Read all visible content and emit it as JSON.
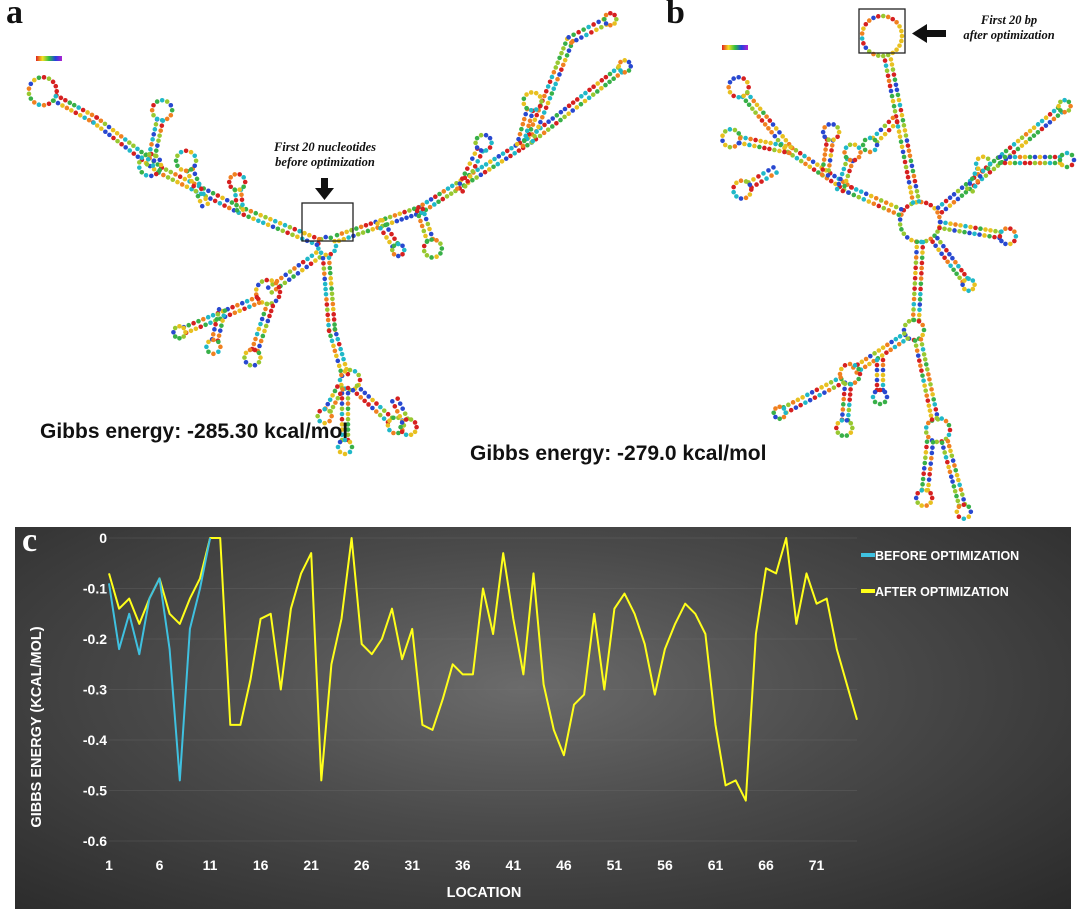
{
  "panels": {
    "a": {
      "letter": "a",
      "callout_line1": "First 20 nucleotides",
      "callout_line2": "before optimization",
      "energy_text": "Gibbs energy:  -285.30 kcal/mol"
    },
    "b": {
      "letter": "b",
      "callout_line1": "First 20 bp",
      "callout_line2": "after optimization",
      "energy_text": "Gibbs energy:  -279.0 kcal/mol"
    },
    "c": {
      "letter": "c"
    }
  },
  "chart_data": {
    "type": "line",
    "title": "",
    "xlabel": "LOCATION",
    "ylabel": "GIBBS ENERGY (KCAL/MOL)",
    "ylim": [
      -0.6,
      0
    ],
    "yticks": [
      "0",
      "-0.1",
      "-0.2",
      "-0.3",
      "-0.4",
      "-0.5",
      "-0.6"
    ],
    "ytick_values": [
      0,
      -0.1,
      -0.2,
      -0.3,
      -0.4,
      -0.5,
      -0.6
    ],
    "xticks": [
      "1",
      "6",
      "11",
      "16",
      "21",
      "26",
      "31",
      "36",
      "41",
      "46",
      "51",
      "56",
      "61",
      "66",
      "71"
    ],
    "xtick_values": [
      1,
      6,
      11,
      16,
      21,
      26,
      31,
      36,
      41,
      46,
      51,
      56,
      61,
      66,
      71
    ],
    "xlim": [
      1,
      75
    ],
    "grid": true,
    "legend_position": "top-right",
    "series": [
      {
        "name": "BEFORE OPTIMIZATION",
        "color": "#3fc1e0",
        "x": [
          1,
          2,
          3,
          4,
          5,
          6,
          7,
          8,
          9,
          10,
          11
        ],
        "values": [
          -0.09,
          -0.22,
          -0.15,
          -0.23,
          -0.12,
          -0.08,
          -0.22,
          -0.48,
          -0.18,
          -0.1,
          0
        ]
      },
      {
        "name": "AFTER OPTIMIZATION",
        "color": "#ffff1a",
        "x": [
          1,
          2,
          3,
          4,
          5,
          6,
          7,
          8,
          9,
          10,
          11,
          12,
          13,
          14,
          15,
          16,
          17,
          18,
          19,
          20,
          21,
          22,
          23,
          24,
          25,
          26,
          27,
          28,
          29,
          30,
          31,
          32,
          33,
          34,
          35,
          36,
          37,
          38,
          39,
          40,
          41,
          42,
          43,
          44,
          45,
          46,
          47,
          48,
          49,
          50,
          51,
          52,
          53,
          54,
          55,
          56,
          57,
          58,
          59,
          60,
          61,
          62,
          63,
          64,
          65,
          66,
          67,
          68,
          69,
          70,
          71,
          72,
          73,
          75
        ],
        "values": [
          -0.07,
          -0.14,
          -0.12,
          -0.17,
          -0.12,
          -0.08,
          -0.15,
          -0.17,
          -0.12,
          -0.08,
          0,
          0,
          -0.37,
          -0.37,
          -0.28,
          -0.16,
          -0.15,
          -0.3,
          -0.14,
          -0.07,
          -0.03,
          -0.48,
          -0.25,
          -0.16,
          0,
          -0.21,
          -0.23,
          -0.2,
          -0.14,
          -0.24,
          -0.18,
          -0.37,
          -0.38,
          -0.32,
          -0.25,
          -0.27,
          -0.27,
          -0.1,
          -0.19,
          -0.03,
          -0.16,
          -0.27,
          -0.07,
          -0.29,
          -0.38,
          -0.43,
          -0.33,
          -0.31,
          -0.15,
          -0.3,
          -0.14,
          -0.11,
          -0.15,
          -0.21,
          -0.31,
          -0.22,
          -0.17,
          -0.13,
          -0.15,
          -0.19,
          -0.37,
          -0.49,
          -0.48,
          -0.52,
          -0.19,
          -0.06,
          -0.07,
          0,
          -0.17,
          -0.07,
          -0.13,
          -0.12,
          -0.22,
          -0.36
        ]
      }
    ]
  }
}
